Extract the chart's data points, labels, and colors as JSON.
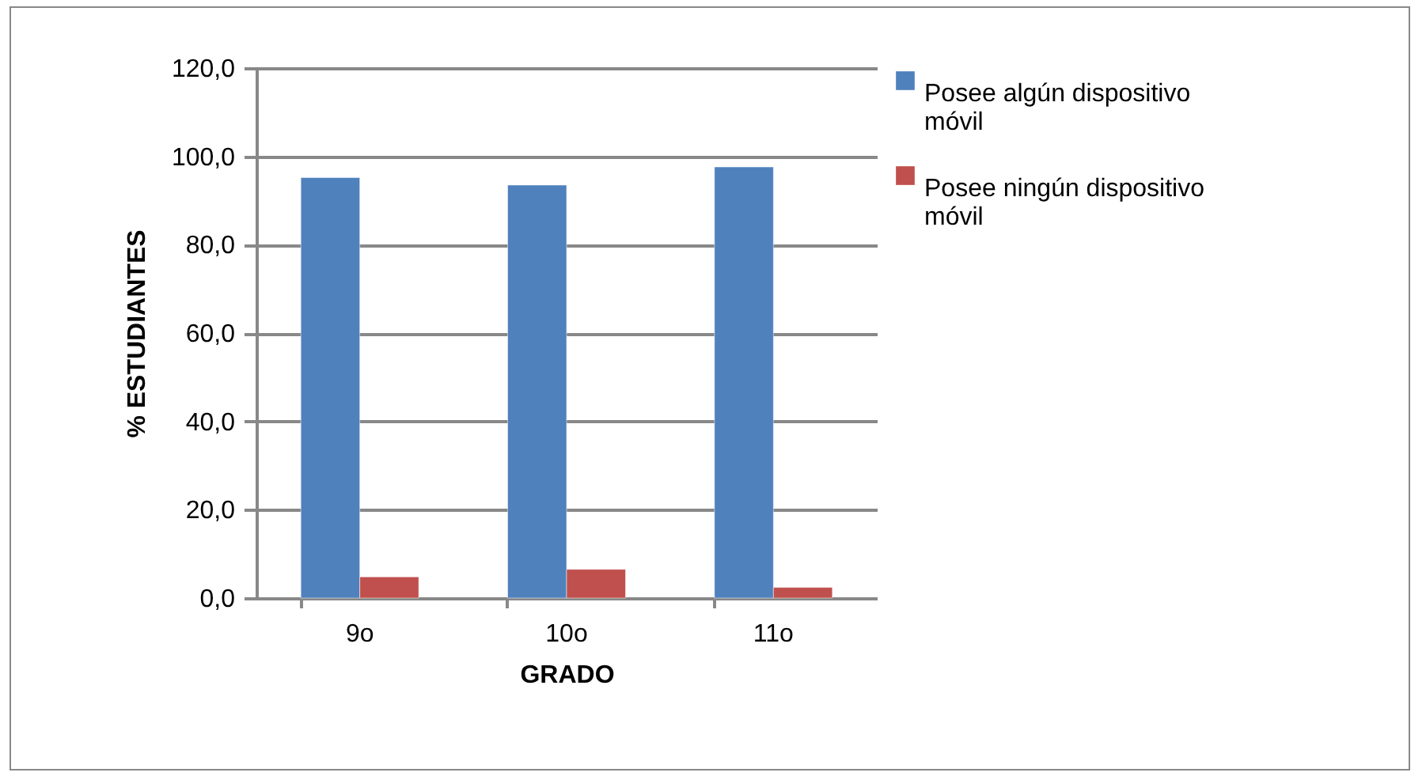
{
  "chart_data": {
    "type": "bar",
    "categories": [
      "9o",
      "10o",
      "11o"
    ],
    "series": [
      {
        "name": "Posee algún dispositivo móvil",
        "color": "#4f81bd",
        "values": [
          95.2,
          93.5,
          97.6
        ]
      },
      {
        "name": "Posee ningún dispositivo móvil",
        "color": "#c0504d",
        "values": [
          4.8,
          6.5,
          2.4
        ]
      }
    ],
    "xlabel": "GRADO",
    "ylabel": "% ESTUDIANTES",
    "ylim": [
      0,
      120
    ],
    "yticks": [
      {
        "value": 0,
        "label": "0,0"
      },
      {
        "value": 20,
        "label": "20,0"
      },
      {
        "value": 40,
        "label": "40,0"
      },
      {
        "value": 60,
        "label": "60,0"
      },
      {
        "value": 80,
        "label": "80,0"
      },
      {
        "value": 100,
        "label": "100,0"
      },
      {
        "value": 120,
        "label": "120,0"
      }
    ],
    "grid": "y",
    "legend": "right"
  }
}
